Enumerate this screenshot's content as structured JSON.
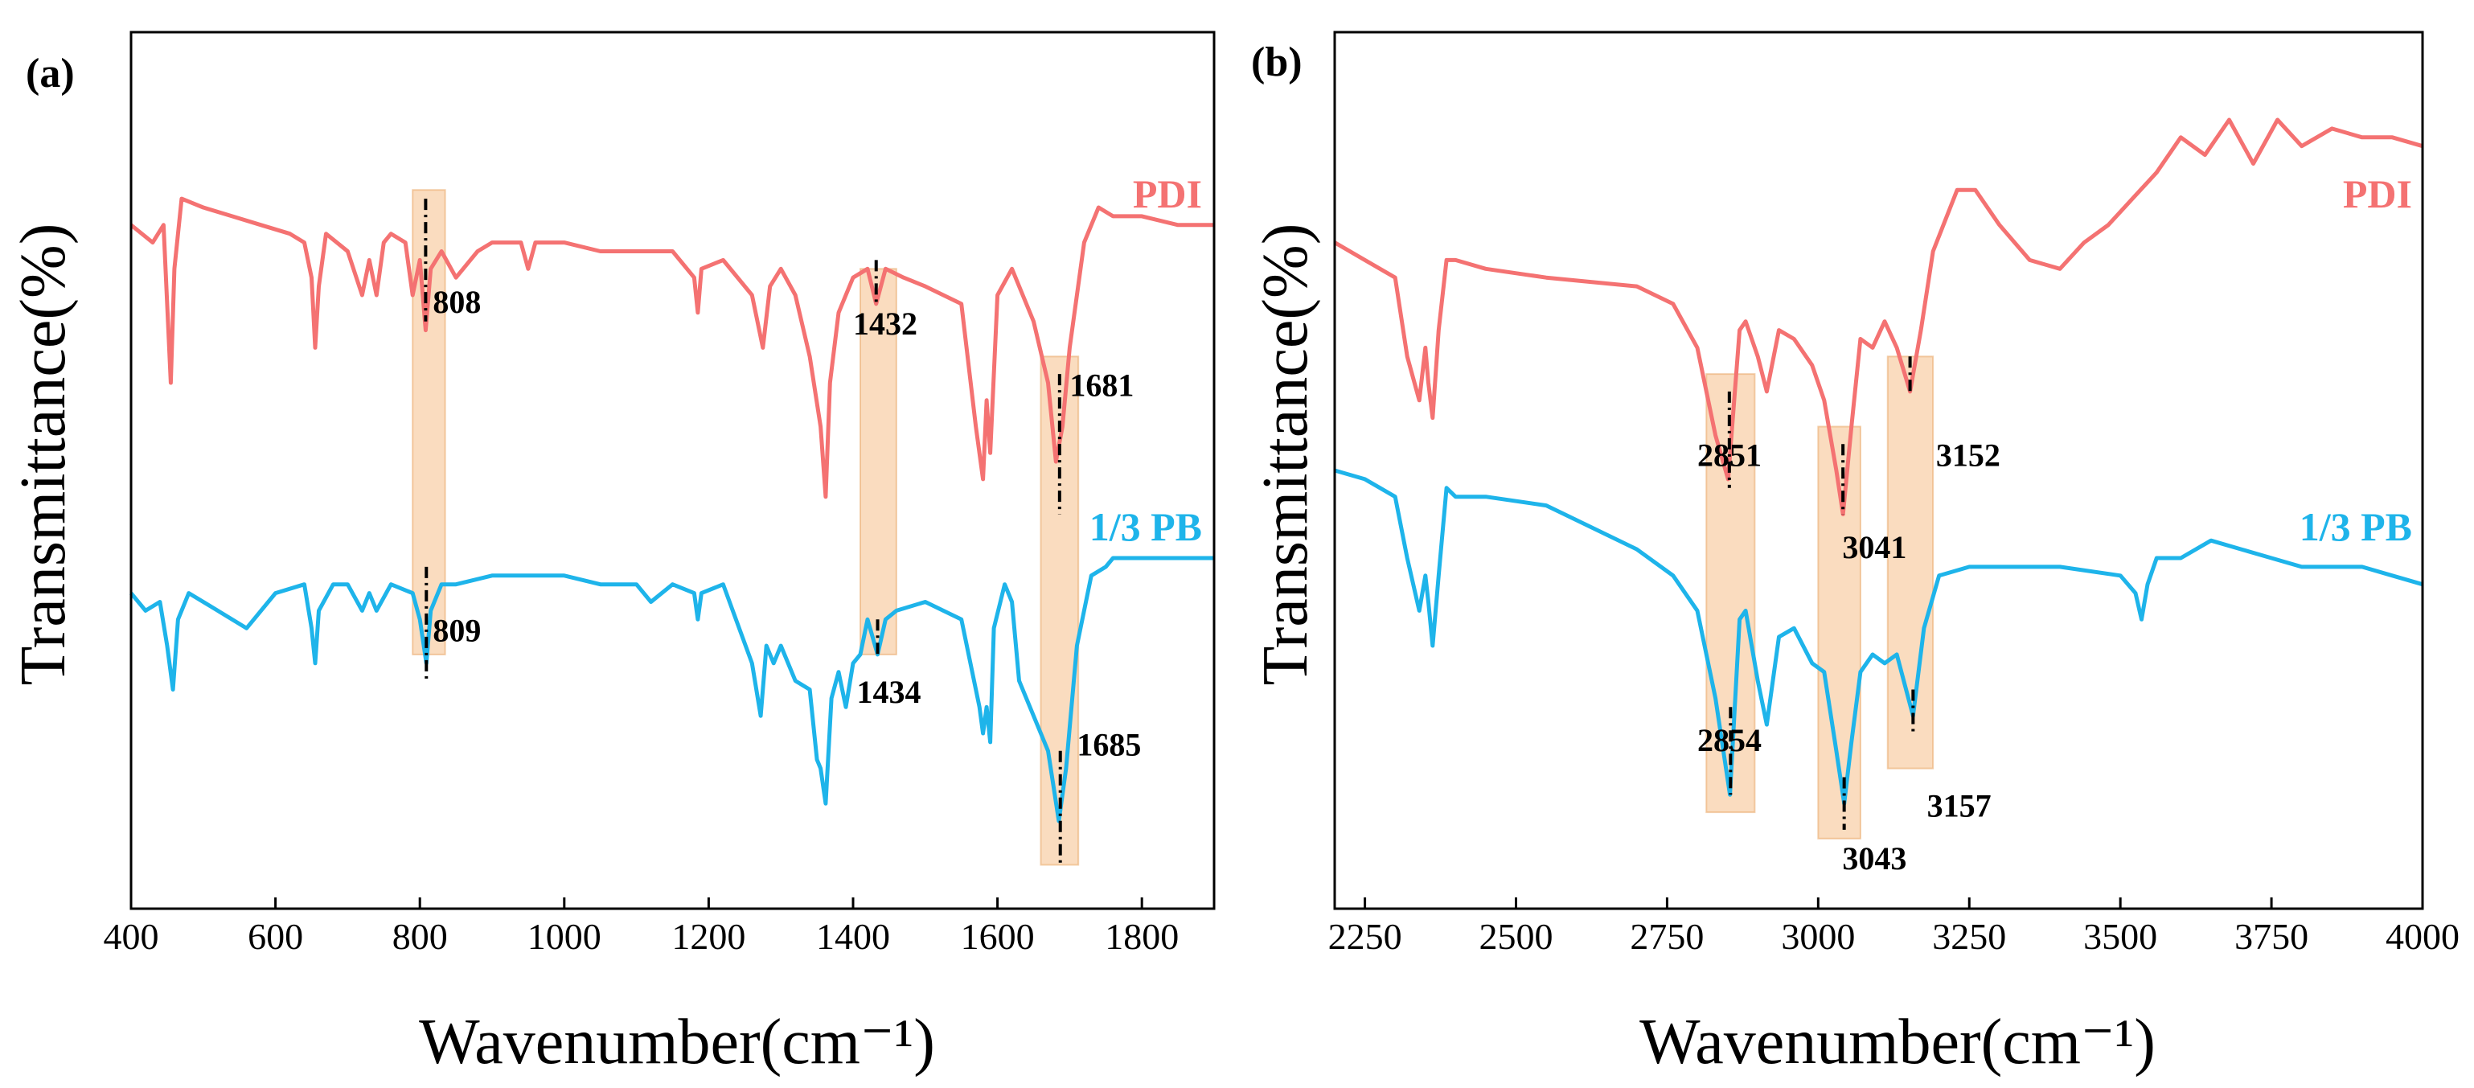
{
  "colors": {
    "pdi": "#F47272",
    "pb": "#1EB4EA",
    "highlight": "#F5C08A",
    "axis": "#000000"
  },
  "chart_data": [
    {
      "type": "line",
      "panel_label": "(a)",
      "xlabel": "Wavenumber(cm⁻¹)",
      "ylabel": "Transmittance(%)",
      "xlim": [
        400,
        1900
      ],
      "ylim": [
        0,
        1
      ],
      "xticks": [
        400,
        600,
        800,
        1000,
        1200,
        1400,
        1600,
        1800
      ],
      "x_tick_labels": [
        "400",
        "600",
        "800",
        "1000",
        "1200",
        "1400",
        "1600",
        "1800"
      ],
      "series": [
        {
          "name": "PDI",
          "color": "#F47272",
          "label_position": "top-right",
          "x": [
            400,
            430,
            445,
            455,
            460,
            470,
            500,
            540,
            580,
            620,
            640,
            650,
            655,
            660,
            670,
            700,
            720,
            730,
            740,
            750,
            760,
            780,
            790,
            800,
            808,
            815,
            830,
            850,
            880,
            900,
            940,
            950,
            960,
            1000,
            1050,
            1100,
            1150,
            1180,
            1185,
            1190,
            1220,
            1260,
            1275,
            1285,
            1300,
            1320,
            1340,
            1355,
            1362,
            1368,
            1380,
            1400,
            1420,
            1432,
            1445,
            1470,
            1500,
            1550,
            1570,
            1580,
            1585,
            1590,
            1600,
            1620,
            1650,
            1670,
            1681,
            1690,
            1700,
            1720,
            1740,
            1760,
            1800,
            1850,
            1900
          ],
          "y": [
            0.78,
            0.76,
            0.78,
            0.6,
            0.73,
            0.81,
            0.8,
            0.79,
            0.78,
            0.77,
            0.76,
            0.72,
            0.64,
            0.71,
            0.77,
            0.75,
            0.7,
            0.74,
            0.7,
            0.76,
            0.77,
            0.76,
            0.7,
            0.74,
            0.66,
            0.73,
            0.75,
            0.72,
            0.75,
            0.76,
            0.76,
            0.73,
            0.76,
            0.76,
            0.75,
            0.75,
            0.75,
            0.72,
            0.68,
            0.73,
            0.74,
            0.7,
            0.64,
            0.71,
            0.73,
            0.7,
            0.63,
            0.55,
            0.47,
            0.6,
            0.68,
            0.72,
            0.73,
            0.69,
            0.73,
            0.72,
            0.71,
            0.69,
            0.55,
            0.49,
            0.58,
            0.52,
            0.7,
            0.73,
            0.67,
            0.6,
            0.51,
            0.55,
            0.64,
            0.76,
            0.8,
            0.79,
            0.79,
            0.78,
            0.78
          ]
        },
        {
          "name": "1/3 PB",
          "color": "#1EB4EA",
          "label_position": "middle-right",
          "x": [
            400,
            420,
            440,
            450,
            458,
            465,
            480,
            520,
            560,
            570,
            600,
            640,
            650,
            655,
            660,
            680,
            700,
            720,
            730,
            740,
            760,
            790,
            800,
            809,
            815,
            830,
            850,
            900,
            950,
            1000,
            1050,
            1100,
            1120,
            1150,
            1180,
            1185,
            1190,
            1220,
            1260,
            1272,
            1280,
            1290,
            1300,
            1320,
            1340,
            1350,
            1355,
            1362,
            1370,
            1380,
            1390,
            1400,
            1410,
            1420,
            1434,
            1445,
            1460,
            1500,
            1550,
            1575,
            1580,
            1585,
            1590,
            1595,
            1610,
            1620,
            1630,
            1650,
            1670,
            1685,
            1695,
            1710,
            1730,
            1750,
            1760,
            1800,
            1850,
            1900
          ],
          "y": [
            0.36,
            0.34,
            0.35,
            0.3,
            0.25,
            0.33,
            0.36,
            0.34,
            0.32,
            0.33,
            0.36,
            0.37,
            0.32,
            0.28,
            0.34,
            0.37,
            0.37,
            0.34,
            0.36,
            0.34,
            0.37,
            0.36,
            0.33,
            0.28,
            0.34,
            0.37,
            0.37,
            0.38,
            0.38,
            0.38,
            0.37,
            0.37,
            0.35,
            0.37,
            0.36,
            0.33,
            0.36,
            0.37,
            0.28,
            0.22,
            0.3,
            0.28,
            0.3,
            0.26,
            0.25,
            0.17,
            0.16,
            0.12,
            0.24,
            0.27,
            0.23,
            0.28,
            0.29,
            0.33,
            0.29,
            0.33,
            0.34,
            0.35,
            0.33,
            0.23,
            0.2,
            0.23,
            0.19,
            0.32,
            0.37,
            0.35,
            0.26,
            0.22,
            0.18,
            0.1,
            0.16,
            0.3,
            0.38,
            0.39,
            0.4,
            0.4,
            0.4,
            0.4
          ]
        }
      ],
      "highlight_bands": [
        {
          "xmin": 790,
          "xmax": 835,
          "ymin": 0.29,
          "ymax": 0.82
        },
        {
          "xmin": 1410,
          "xmax": 1460,
          "ymin": 0.29,
          "ymax": 0.73
        },
        {
          "xmin": 1660,
          "xmax": 1712,
          "ymin": 0.05,
          "ymax": 0.63
        }
      ],
      "peak_markers": [
        {
          "x": 808,
          "ymin": 0.67,
          "ymax": 0.81
        },
        {
          "x": 1432,
          "ymin": 0.69,
          "ymax": 0.74
        },
        {
          "x": 1686,
          "ymin": 0.45,
          "ymax": 0.61
        },
        {
          "x": 809,
          "ymin": 0.26,
          "ymax": 0.39
        },
        {
          "x": 1434,
          "ymin": 0.29,
          "ymax": 0.33
        },
        {
          "x": 1687,
          "ymin": 0.05,
          "ymax": 0.18
        }
      ],
      "annotations": [
        {
          "text": "808",
          "x": 818,
          "y": 0.68
        },
        {
          "text": "1432",
          "x": 1400,
          "y": 0.655
        },
        {
          "text": "1681",
          "x": 1700,
          "y": 0.585
        },
        {
          "text": "809",
          "x": 818,
          "y": 0.305
        },
        {
          "text": "1434",
          "x": 1405,
          "y": 0.235
        },
        {
          "text": "1685",
          "x": 1710,
          "y": 0.175
        }
      ]
    },
    {
      "type": "line",
      "panel_label": "(b)",
      "xlabel": "Wavenumber(cm⁻¹)",
      "ylabel": "Transmittance(%)",
      "xlim": [
        2200,
        4000
      ],
      "ylim": [
        0,
        1
      ],
      "xticks": [
        2250,
        2500,
        2750,
        3000,
        3250,
        3500,
        3750,
        4000
      ],
      "x_tick_labels": [
        "2250",
        "2500",
        "2750",
        "3000",
        "3250",
        "3500",
        "3750",
        "4000"
      ],
      "series": [
        {
          "name": "PDI",
          "color": "#F47272",
          "label_position": "top-right",
          "x": [
            2200,
            2250,
            2300,
            2320,
            2340,
            2350,
            2355,
            2362,
            2372,
            2385,
            2400,
            2450,
            2550,
            2700,
            2760,
            2800,
            2830,
            2851,
            2870,
            2880,
            2900,
            2915,
            2935,
            2960,
            2990,
            3010,
            3030,
            3041,
            3055,
            3070,
            3090,
            3110,
            3130,
            3152,
            3170,
            3190,
            3230,
            3260,
            3300,
            3350,
            3400,
            3440,
            3480,
            3520,
            3560,
            3600,
            3640,
            3680,
            3720,
            3760,
            3800,
            3850,
            3900,
            3950,
            4000
          ],
          "y": [
            0.76,
            0.74,
            0.72,
            0.63,
            0.58,
            0.64,
            0.6,
            0.56,
            0.66,
            0.74,
            0.74,
            0.73,
            0.72,
            0.71,
            0.69,
            0.64,
            0.54,
            0.49,
            0.66,
            0.67,
            0.63,
            0.59,
            0.66,
            0.65,
            0.62,
            0.58,
            0.5,
            0.45,
            0.55,
            0.65,
            0.64,
            0.67,
            0.64,
            0.59,
            0.66,
            0.75,
            0.82,
            0.82,
            0.78,
            0.74,
            0.73,
            0.76,
            0.78,
            0.81,
            0.84,
            0.88,
            0.86,
            0.9,
            0.85,
            0.9,
            0.87,
            0.89,
            0.88,
            0.88,
            0.87
          ]
        },
        {
          "name": "1/3 PB",
          "color": "#1EB4EA",
          "label_position": "middle-right",
          "x": [
            2200,
            2250,
            2300,
            2320,
            2340,
            2350,
            2355,
            2362,
            2372,
            2385,
            2400,
            2450,
            2550,
            2700,
            2760,
            2800,
            2830,
            2854,
            2870,
            2880,
            2900,
            2915,
            2935,
            2960,
            2990,
            3010,
            3030,
            3043,
            3055,
            3070,
            3090,
            3110,
            3130,
            3157,
            3175,
            3200,
            3250,
            3300,
            3400,
            3500,
            3525,
            3535,
            3545,
            3560,
            3600,
            3650,
            3700,
            3750,
            3800,
            3850,
            3900,
            3950,
            4000
          ],
          "y": [
            0.5,
            0.49,
            0.47,
            0.4,
            0.34,
            0.38,
            0.35,
            0.3,
            0.38,
            0.48,
            0.47,
            0.47,
            0.46,
            0.41,
            0.38,
            0.34,
            0.24,
            0.13,
            0.33,
            0.34,
            0.26,
            0.21,
            0.31,
            0.32,
            0.28,
            0.27,
            0.18,
            0.12,
            0.19,
            0.27,
            0.29,
            0.28,
            0.29,
            0.22,
            0.32,
            0.38,
            0.39,
            0.39,
            0.39,
            0.38,
            0.36,
            0.33,
            0.37,
            0.4,
            0.4,
            0.42,
            0.41,
            0.4,
            0.39,
            0.39,
            0.39,
            0.38,
            0.37
          ]
        }
      ],
      "highlight_bands": [
        {
          "xmin": 2815,
          "xmax": 2895,
          "ymin": 0.11,
          "ymax": 0.61
        },
        {
          "xmin": 3000,
          "xmax": 3070,
          "ymin": 0.08,
          "ymax": 0.55
        },
        {
          "xmin": 3115,
          "xmax": 3190,
          "ymin": 0.16,
          "ymax": 0.63
        }
      ],
      "peak_markers": [
        {
          "x": 2853,
          "ymin": 0.48,
          "ymax": 0.59
        },
        {
          "x": 3041,
          "ymin": 0.45,
          "ymax": 0.53
        },
        {
          "x": 3152,
          "ymin": 0.59,
          "ymax": 0.63
        },
        {
          "x": 2855,
          "ymin": 0.13,
          "ymax": 0.23
        },
        {
          "x": 3043,
          "ymin": 0.09,
          "ymax": 0.15
        },
        {
          "x": 3157,
          "ymin": 0.2,
          "ymax": 0.25
        }
      ],
      "annotations": [
        {
          "text": "2851",
          "x": 2800,
          "y": 0.505
        },
        {
          "text": "3041",
          "x": 3040,
          "y": 0.4
        },
        {
          "text": "3152",
          "x": 3195,
          "y": 0.505
        },
        {
          "text": "2854",
          "x": 2800,
          "y": 0.18
        },
        {
          "text": "3043",
          "x": 3040,
          "y": 0.045
        },
        {
          "text": "3157",
          "x": 3180,
          "y": 0.105
        }
      ]
    }
  ]
}
